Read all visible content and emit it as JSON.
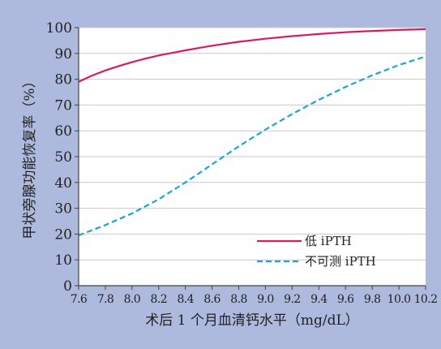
{
  "chart_data": {
    "type": "line",
    "title": "",
    "xlabel": "术后 1 个月血清钙水平（mg/dL）",
    "ylabel": "甲状旁腺功能恢复率（%）",
    "xlim": [
      7.6,
      10.2
    ],
    "ylim": [
      0,
      100
    ],
    "x_ticks": [
      7.6,
      7.8,
      8.0,
      8.2,
      8.4,
      8.6,
      8.8,
      9.0,
      9.2,
      9.4,
      9.6,
      9.8,
      10.0,
      10.2
    ],
    "x_tick_labels": [
      "7.6",
      "7.8",
      "8.0",
      "8.2",
      "8.4",
      "8.6",
      "8.8",
      "9.0",
      "9.2",
      "9.4",
      "9.6",
      "9.8",
      "10.0",
      "10.2"
    ],
    "y_ticks": [
      0,
      10,
      20,
      30,
      40,
      50,
      60,
      70,
      80,
      90,
      100
    ],
    "y_tick_labels": [
      "0",
      "10",
      "20",
      "30",
      "40",
      "50",
      "60",
      "70",
      "80",
      "90",
      "100"
    ],
    "grid": "horizontal",
    "legend_position": "bottom-right",
    "colors": {
      "outer_background": "#adb9dd",
      "plot_background": "#ffffff",
      "grid": "#c9c9c9",
      "axis": "#444444"
    },
    "series": [
      {
        "name": "低 iPTH",
        "color": "#d81b60",
        "dash": "solid",
        "points": [
          [
            7.6,
            79
          ],
          [
            7.7,
            81.4
          ],
          [
            7.8,
            83.4
          ],
          [
            7.9,
            85.1
          ],
          [
            8.0,
            86.6
          ],
          [
            8.1,
            88
          ],
          [
            8.2,
            89.2
          ],
          [
            8.3,
            90.2
          ],
          [
            8.4,
            91.2
          ],
          [
            8.6,
            93
          ],
          [
            8.8,
            94.5
          ],
          [
            9.0,
            95.7
          ],
          [
            9.2,
            96.7
          ],
          [
            9.4,
            97.5
          ],
          [
            9.6,
            98.2
          ],
          [
            9.8,
            98.7
          ],
          [
            10.0,
            99.1
          ],
          [
            10.2,
            99.4
          ]
        ]
      },
      {
        "name": "不可测 iPTH",
        "color": "#1aa5d6",
        "dash": "dashed",
        "points": [
          [
            7.6,
            19.5
          ],
          [
            7.8,
            23.5
          ],
          [
            8.0,
            28
          ],
          [
            8.2,
            33.5
          ],
          [
            8.4,
            40
          ],
          [
            8.6,
            47
          ],
          [
            8.8,
            54
          ],
          [
            9.0,
            60.5
          ],
          [
            9.2,
            66.5
          ],
          [
            9.4,
            72
          ],
          [
            9.6,
            77
          ],
          [
            9.8,
            81.5
          ],
          [
            10.0,
            85.5
          ],
          [
            10.2,
            88.8
          ]
        ]
      }
    ]
  }
}
